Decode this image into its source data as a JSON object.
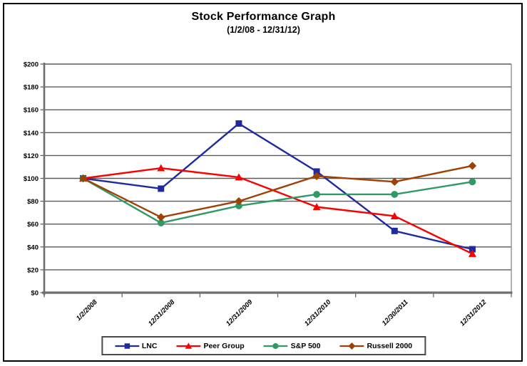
{
  "chart_data": {
    "type": "line",
    "title": "Stock Performance Graph",
    "subtitle": "(1/2/08 - 12/31/12)",
    "categories": [
      "1/2/2008",
      "12/31/2008",
      "12/31/2009",
      "12/31/2010",
      "12/30/2011",
      "12/31/2012"
    ],
    "series": [
      {
        "name": "LNC",
        "color": "#1f2aa0",
        "marker": "square",
        "values": [
          100,
          91,
          148,
          106,
          54,
          38
        ]
      },
      {
        "name": "Peer Group",
        "color": "#fb0000",
        "marker": "triangle",
        "values": [
          100,
          109,
          101,
          75,
          67,
          34
        ]
      },
      {
        "name": "S&P 500",
        "color": "#2f9a66",
        "marker": "circle",
        "values": [
          100,
          61,
          76,
          86,
          86,
          97
        ]
      },
      {
        "name": "Russell 2000",
        "color": "#9e4106",
        "marker": "diamond",
        "values": [
          100,
          66,
          80,
          102,
          97,
          111
        ]
      }
    ],
    "y_ticks": [
      "$0",
      "$20",
      "$40",
      "$60",
      "$80",
      "$100",
      "$120",
      "$140",
      "$160",
      "$180",
      "$200"
    ],
    "ylim": [
      0,
      200
    ],
    "grid": true,
    "legend_position": "bottom",
    "axis_color": "#6e6e6e",
    "grid_color": "#5a5a5a",
    "text_color": "#000000"
  }
}
